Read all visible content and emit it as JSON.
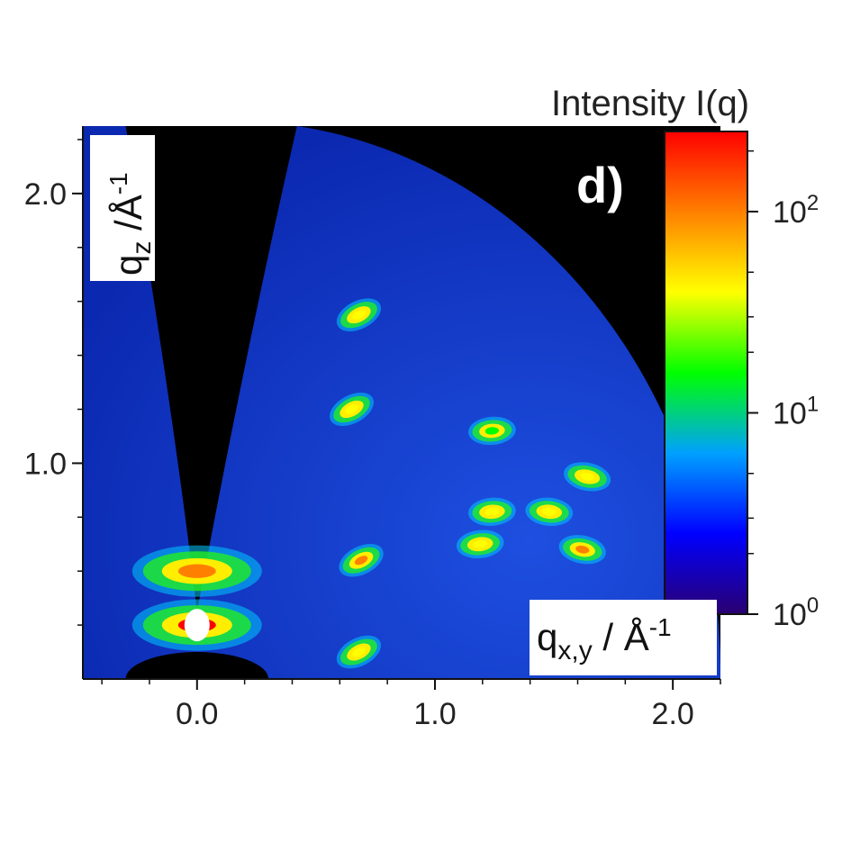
{
  "chart_data": {
    "type": "heatmap",
    "panel_label": "d)",
    "xlabel": "q",
    "xlabel_sub": "x,y",
    "xlabel_unit": " / Å",
    "xlabel_exp": "-1",
    "ylabel": "q",
    "ylabel_sub": "z",
    "ylabel_unit": " /Å",
    "ylabel_exp": "-1",
    "xlim": [
      -0.48,
      2.2
    ],
    "ylim": [
      0.2,
      2.25
    ],
    "x_ticks": [
      "0.0",
      "1.0",
      "2.0"
    ],
    "x_tick_values": [
      0.0,
      1.0,
      2.0
    ],
    "y_ticks": [
      "1.0",
      "2.0"
    ],
    "y_tick_values": [
      1.0,
      2.0
    ],
    "colorbar": {
      "title": "Intensity I(q)",
      "scale": "log",
      "range": [
        1,
        250
      ],
      "tick_base": "10",
      "tick_exponents": [
        "0",
        "1",
        "2"
      ],
      "tick_values": [
        1,
        10,
        100
      ],
      "colormap": [
        "#2a0070",
        "#0000ff",
        "#00a0ff",
        "#00ff00",
        "#ffff00",
        "#ff8000",
        "#ff0000"
      ]
    },
    "colors": {
      "background_map": "#0d2cb8",
      "masked_region": "#000000"
    },
    "peaks": [
      {
        "qxy": 0.68,
        "qz": 1.55,
        "intensity": 60
      },
      {
        "qxy": 0.65,
        "qz": 1.2,
        "intensity": 60
      },
      {
        "qxy": 0.69,
        "qz": 0.64,
        "intensity": 120
      },
      {
        "qxy": 0.68,
        "qz": 0.3,
        "intensity": 50
      },
      {
        "qxy": 1.24,
        "qz": 1.12,
        "intensity": 25
      },
      {
        "qxy": 1.24,
        "qz": 0.82,
        "intensity": 40
      },
      {
        "qxy": 1.19,
        "qz": 0.7,
        "intensity": 45
      },
      {
        "qxy": 1.48,
        "qz": 0.82,
        "intensity": 45
      },
      {
        "qxy": 1.64,
        "qz": 0.95,
        "intensity": 55
      },
      {
        "qxy": 1.62,
        "qz": 0.68,
        "intensity": 80
      },
      {
        "qxy": 0.0,
        "qz": 0.4,
        "intensity": 250
      },
      {
        "qxy": 0.0,
        "qz": 0.6,
        "intensity": 150
      }
    ]
  }
}
